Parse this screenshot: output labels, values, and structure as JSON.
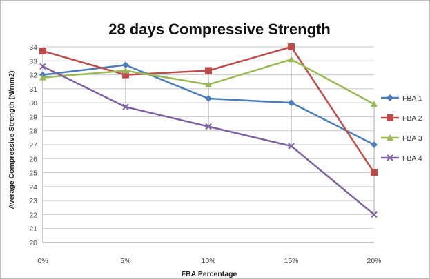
{
  "chart_data": {
    "type": "line",
    "title": "28 days Compressive Strength",
    "xlabel": "FBA Percentage",
    "ylabel": "Average Compressive Strength (N/mm2)",
    "categories": [
      "0%",
      "5%",
      "10%",
      "15%",
      "20%"
    ],
    "ylim": [
      20,
      34
    ],
    "yticks": [
      "20",
      "21",
      "22",
      "23",
      "24",
      "25",
      "26",
      "27",
      "28",
      "29",
      "30",
      "31",
      "32",
      "33",
      "34"
    ],
    "grid": "horizontal",
    "legend_position": "right",
    "series": [
      {
        "name": "FBA 1",
        "color": "#4a7ebb",
        "marker": "diamond",
        "values": [
          32.0,
          32.7,
          30.3,
          30.0,
          27.0
        ]
      },
      {
        "name": "FBA 2",
        "color": "#be4b48",
        "marker": "square",
        "values": [
          33.7,
          32.0,
          32.3,
          34.0,
          25.0
        ]
      },
      {
        "name": "FBA 3",
        "color": "#98b954",
        "marker": "triangle",
        "values": [
          31.8,
          32.3,
          31.3,
          33.1,
          29.9
        ]
      },
      {
        "name": "FBA 4",
        "color": "#7d60a0",
        "marker": "x",
        "values": [
          32.6,
          29.7,
          28.3,
          26.9,
          22.0
        ]
      }
    ]
  }
}
